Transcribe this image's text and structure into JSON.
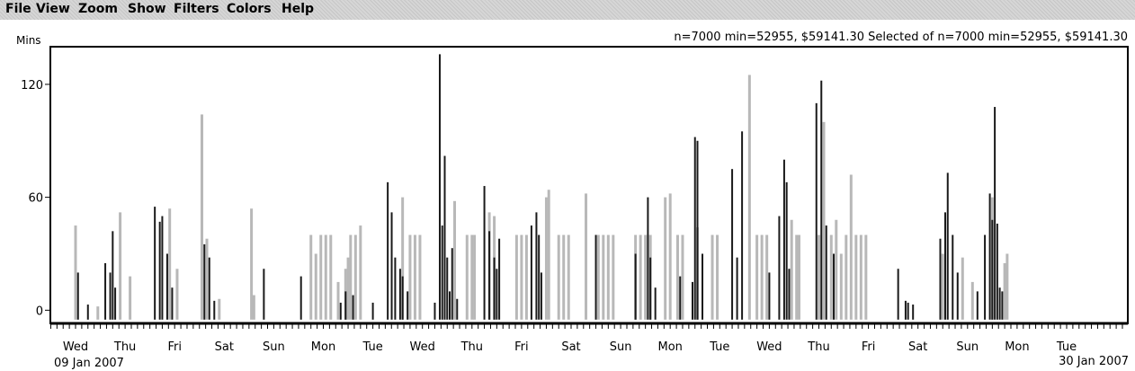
{
  "menu": [
    "File",
    "View",
    "Zoom",
    "Show",
    "Filters",
    "Colors",
    "Help"
  ],
  "y_unit_label": "Mins",
  "stats_text": "n=7000 min=52955, $59141.30 Selected of n=7000 min=52955, $59141.30",
  "start_date": "09 Jan 2007",
  "end_date": "30 Jan 2007",
  "colors": {
    "dark": "#1a1a1a",
    "light": "#b8b8b8",
    "axis": "#000000"
  },
  "chart_data": {
    "type": "bar",
    "ylabel": "Mins",
    "ylim": [
      -7,
      140
    ],
    "y_ticks": [
      0,
      60,
      120
    ],
    "x_tick_labels": [
      "Wed",
      "Thu",
      "Fri",
      "Sat",
      "Sun",
      "Mon",
      "Tue",
      "Wed",
      "Thu",
      "Fri",
      "Sat",
      "Sun",
      "Mon",
      "Tue",
      "Wed",
      "Thu",
      "Fri",
      "Sat",
      "Sun",
      "Mon",
      "Tue"
    ],
    "series": [
      {
        "values": [
          [
            0.05,
            20
          ],
          [
            0.25,
            3
          ],
          [
            0.6,
            25
          ],
          [
            0.7,
            20
          ],
          [
            0.75,
            42
          ],
          [
            0.8,
            12
          ],
          [
            1.6,
            55
          ],
          [
            1.7,
            47
          ],
          [
            1.75,
            50
          ],
          [
            1.85,
            30
          ],
          [
            1.95,
            12
          ],
          [
            2.6,
            35
          ],
          [
            2.7,
            28
          ],
          [
            2.8,
            5
          ],
          [
            3.8,
            22
          ],
          [
            4.55,
            18
          ],
          [
            5.35,
            4
          ],
          [
            5.45,
            10
          ],
          [
            5.6,
            8
          ],
          [
            6.0,
            4
          ],
          [
            6.3,
            68
          ],
          [
            6.38,
            52
          ],
          [
            6.45,
            28
          ],
          [
            6.55,
            22
          ],
          [
            6.6,
            18
          ],
          [
            6.7,
            10
          ],
          [
            7.25,
            4
          ],
          [
            7.35,
            136
          ],
          [
            7.4,
            45
          ],
          [
            7.45,
            82
          ],
          [
            7.5,
            28
          ],
          [
            7.55,
            10
          ],
          [
            7.6,
            33
          ],
          [
            7.7,
            6
          ],
          [
            8.25,
            66
          ],
          [
            8.35,
            42
          ],
          [
            8.45,
            28
          ],
          [
            8.5,
            22
          ],
          [
            8.55,
            38
          ],
          [
            9.2,
            45
          ],
          [
            9.3,
            52
          ],
          [
            9.35,
            40
          ],
          [
            9.4,
            20
          ],
          [
            10.5,
            40
          ],
          [
            11.3,
            30
          ],
          [
            11.55,
            60
          ],
          [
            11.6,
            28
          ],
          [
            11.7,
            12
          ],
          [
            12.2,
            18
          ],
          [
            12.45,
            15
          ],
          [
            12.5,
            92
          ],
          [
            12.55,
            90
          ],
          [
            12.65,
            30
          ],
          [
            13.25,
            75
          ],
          [
            13.35,
            28
          ],
          [
            13.45,
            95
          ],
          [
            14.0,
            20
          ],
          [
            14.2,
            50
          ],
          [
            14.3,
            80
          ],
          [
            14.35,
            68
          ],
          [
            14.4,
            22
          ],
          [
            14.95,
            110
          ],
          [
            15.05,
            122
          ],
          [
            15.15,
            45
          ],
          [
            15.3,
            30
          ],
          [
            16.6,
            22
          ],
          [
            16.75,
            5
          ],
          [
            16.8,
            4
          ],
          [
            16.9,
            3
          ],
          [
            17.45,
            38
          ],
          [
            17.55,
            52
          ],
          [
            17.6,
            73
          ],
          [
            17.7,
            40
          ],
          [
            17.8,
            20
          ],
          [
            18.2,
            10
          ],
          [
            18.35,
            40
          ],
          [
            18.45,
            62
          ],
          [
            18.5,
            48
          ],
          [
            18.55,
            108
          ],
          [
            18.6,
            46
          ],
          [
            18.65,
            12
          ],
          [
            18.7,
            10
          ]
        ]
      },
      {
        "values": [
          [
            0.0,
            45
          ],
          [
            0.45,
            2
          ],
          [
            0.9,
            52
          ],
          [
            1.1,
            18
          ],
          [
            1.9,
            54
          ],
          [
            2.05,
            22
          ],
          [
            2.55,
            104
          ],
          [
            2.65,
            38
          ],
          [
            2.9,
            6
          ],
          [
            3.55,
            54
          ],
          [
            3.6,
            8
          ],
          [
            4.75,
            40
          ],
          [
            4.85,
            30
          ],
          [
            4.95,
            40
          ],
          [
            5.05,
            40
          ],
          [
            5.15,
            40
          ],
          [
            5.3,
            15
          ],
          [
            5.45,
            22
          ],
          [
            5.5,
            28
          ],
          [
            5.55,
            40
          ],
          [
            5.65,
            40
          ],
          [
            5.75,
            45
          ],
          [
            6.6,
            60
          ],
          [
            6.75,
            40
          ],
          [
            6.85,
            40
          ],
          [
            6.95,
            40
          ],
          [
            7.65,
            58
          ],
          [
            7.9,
            40
          ],
          [
            8.0,
            40
          ],
          [
            8.05,
            40
          ],
          [
            8.35,
            52
          ],
          [
            8.45,
            50
          ],
          [
            8.9,
            40
          ],
          [
            9.0,
            40
          ],
          [
            9.1,
            40
          ],
          [
            9.5,
            60
          ],
          [
            9.55,
            64
          ],
          [
            9.75,
            40
          ],
          [
            9.85,
            40
          ],
          [
            9.95,
            40
          ],
          [
            10.3,
            62
          ],
          [
            10.55,
            40
          ],
          [
            10.65,
            40
          ],
          [
            10.75,
            40
          ],
          [
            10.85,
            40
          ],
          [
            11.3,
            40
          ],
          [
            11.4,
            40
          ],
          [
            11.5,
            40
          ],
          [
            11.6,
            40
          ],
          [
            11.9,
            60
          ],
          [
            12.0,
            62
          ],
          [
            12.15,
            40
          ],
          [
            12.25,
            40
          ],
          [
            12.55,
            44
          ],
          [
            12.85,
            40
          ],
          [
            12.95,
            40
          ],
          [
            13.6,
            125
          ],
          [
            13.75,
            40
          ],
          [
            13.85,
            40
          ],
          [
            13.95,
            40
          ],
          [
            14.45,
            48
          ],
          [
            14.55,
            40
          ],
          [
            14.6,
            40
          ],
          [
            15.0,
            40
          ],
          [
            15.1,
            100
          ],
          [
            15.25,
            40
          ],
          [
            15.35,
            48
          ],
          [
            15.45,
            30
          ],
          [
            15.55,
            40
          ],
          [
            15.65,
            72
          ],
          [
            15.75,
            40
          ],
          [
            15.85,
            40
          ],
          [
            15.95,
            40
          ],
          [
            17.5,
            30
          ],
          [
            17.9,
            28
          ],
          [
            18.1,
            15
          ],
          [
            18.5,
            60
          ],
          [
            18.75,
            25
          ],
          [
            18.8,
            30
          ]
        ]
      }
    ]
  }
}
